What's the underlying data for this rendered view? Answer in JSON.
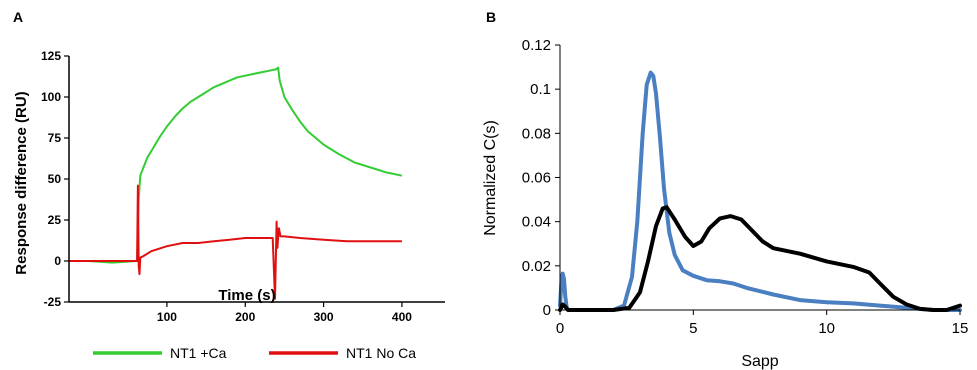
{
  "chart_data": [
    {
      "panel_label": "A",
      "type": "line",
      "xlabel": "Time (s)",
      "ylabel": "Response difference (RU)",
      "xlim": [
        -25,
        455
      ],
      "ylim": [
        -25,
        125
      ],
      "xticks": [
        100,
        200,
        300,
        400
      ],
      "yticks": [
        -25,
        0,
        25,
        50,
        75,
        100,
        125
      ],
      "legend_position": "bottom",
      "series": [
        {
          "name": "NT1 +Ca",
          "color": "#33cc33",
          "x": [
            -25,
            0,
            30,
            62,
            63,
            64,
            66,
            70,
            75,
            80,
            90,
            100,
            110,
            120,
            130,
            140,
            150,
            160,
            170,
            180,
            190,
            200,
            210,
            220,
            230,
            240,
            242,
            244,
            250,
            260,
            270,
            280,
            290,
            300,
            320,
            340,
            360,
            380,
            400
          ],
          "y": [
            0,
            0,
            -1,
            0,
            20,
            38,
            52,
            57,
            63,
            67,
            75,
            82,
            88,
            93,
            97,
            100,
            103,
            106,
            108,
            110,
            112,
            113,
            114,
            115,
            116,
            117,
            118,
            110,
            100,
            92,
            85,
            79,
            75,
            71,
            65,
            60,
            57,
            54,
            52
          ]
        },
        {
          "name": "NT1 No Ca",
          "color": "#e01010",
          "x": [
            -25,
            0,
            30,
            62,
            63,
            64,
            65,
            66,
            70,
            80,
            100,
            120,
            140,
            160,
            180,
            200,
            220,
            235,
            238,
            240,
            241,
            242,
            243,
            245,
            250,
            270,
            300,
            330,
            360,
            400
          ],
          "y": [
            0,
            0,
            0,
            0,
            46,
            -3,
            -8,
            2,
            3,
            6,
            9,
            11,
            11,
            12,
            13,
            14,
            14,
            14,
            -23,
            24,
            8,
            14,
            20,
            15,
            15,
            14,
            13,
            12,
            12,
            12
          ]
        }
      ]
    },
    {
      "panel_label": "B",
      "type": "line",
      "xlabel": "Sapp",
      "ylabel": "Normalized C(s)",
      "xlim": [
        0,
        15
      ],
      "ylim": [
        0,
        0.12
      ],
      "xticks": [
        0,
        5,
        10,
        15
      ],
      "yticks": [
        0,
        0.02,
        0.04,
        0.06,
        0.08,
        0.1,
        0.12
      ],
      "series": [
        {
          "name": "",
          "color": "#4a7fc1",
          "x": [
            0,
            0.05,
            0.1,
            0.15,
            0.2,
            0.25,
            0.3,
            0.4,
            1,
            2,
            2.4,
            2.7,
            2.9,
            3.1,
            3.25,
            3.4,
            3.5,
            3.6,
            3.75,
            3.9,
            4.1,
            4.3,
            4.6,
            5,
            5.5,
            6,
            6.5,
            7,
            8,
            9,
            10,
            11,
            12,
            13,
            13.5,
            14,
            15
          ],
          "y": [
            0.002,
            0.012,
            0.0165,
            0.014,
            0.006,
            0.001,
            0,
            0,
            0,
            0,
            0.002,
            0.015,
            0.04,
            0.08,
            0.102,
            0.1075,
            0.106,
            0.098,
            0.078,
            0.055,
            0.035,
            0.025,
            0.018,
            0.0155,
            0.0135,
            0.013,
            0.012,
            0.01,
            0.007,
            0.0045,
            0.0035,
            0.003,
            0.002,
            0.001,
            0.0005,
            0,
            0
          ]
        },
        {
          "name": "",
          "color": "#000000",
          "x": [
            0,
            0.1,
            0.2,
            0.3,
            0.5,
            1,
            2,
            2.6,
            3,
            3.3,
            3.6,
            3.85,
            4,
            4.3,
            4.7,
            5,
            5.3,
            5.6,
            6,
            6.4,
            6.8,
            7.2,
            7.6,
            8,
            9,
            10,
            11,
            11.6,
            12,
            12.5,
            13,
            13.5,
            14,
            14.5,
            15
          ],
          "y": [
            0,
            0.0025,
            0.0015,
            0,
            0,
            0,
            0,
            0.001,
            0.008,
            0.022,
            0.038,
            0.046,
            0.0465,
            0.041,
            0.033,
            0.029,
            0.031,
            0.037,
            0.0415,
            0.0425,
            0.041,
            0.036,
            0.031,
            0.028,
            0.0255,
            0.022,
            0.0195,
            0.017,
            0.012,
            0.006,
            0.0025,
            0.0005,
            0,
            0,
            0.002
          ]
        }
      ]
    }
  ]
}
